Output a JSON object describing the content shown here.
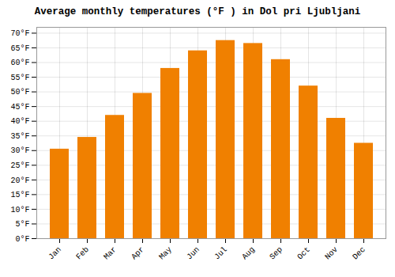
{
  "chart_data": {
    "type": "bar",
    "title": "Average monthly temperatures (°F ) in Dol pri Ljubljani",
    "categories": [
      "Jan",
      "Feb",
      "Mar",
      "Apr",
      "May",
      "Jun",
      "Jul",
      "Aug",
      "Sep",
      "Oct",
      "Nov",
      "Dec"
    ],
    "values": [
      30.5,
      34.5,
      42,
      49.5,
      58,
      64,
      67.5,
      66.5,
      61,
      52,
      41,
      32.5
    ],
    "color": "#F08000",
    "ylim": [
      0,
      72
    ],
    "yticks": [
      {
        "value": 0,
        "label": "0°F"
      },
      {
        "value": 5,
        "label": "5°F"
      },
      {
        "value": 10,
        "label": "10°F"
      },
      {
        "value": 15,
        "label": "15°F"
      },
      {
        "value": 20,
        "label": "20°F"
      },
      {
        "value": 25,
        "label": "25°F"
      },
      {
        "value": 30,
        "label": "30°F"
      },
      {
        "value": 35,
        "label": "35°F"
      },
      {
        "value": 40,
        "label": "40°F"
      },
      {
        "value": 45,
        "label": "45°F"
      },
      {
        "value": 50,
        "label": "50°F"
      },
      {
        "value": 55,
        "label": "55°F"
      },
      {
        "value": 60,
        "label": "60°F"
      },
      {
        "value": 65,
        "label": "65°F"
      },
      {
        "value": 70,
        "label": "70°F"
      }
    ],
    "grid": true
  }
}
